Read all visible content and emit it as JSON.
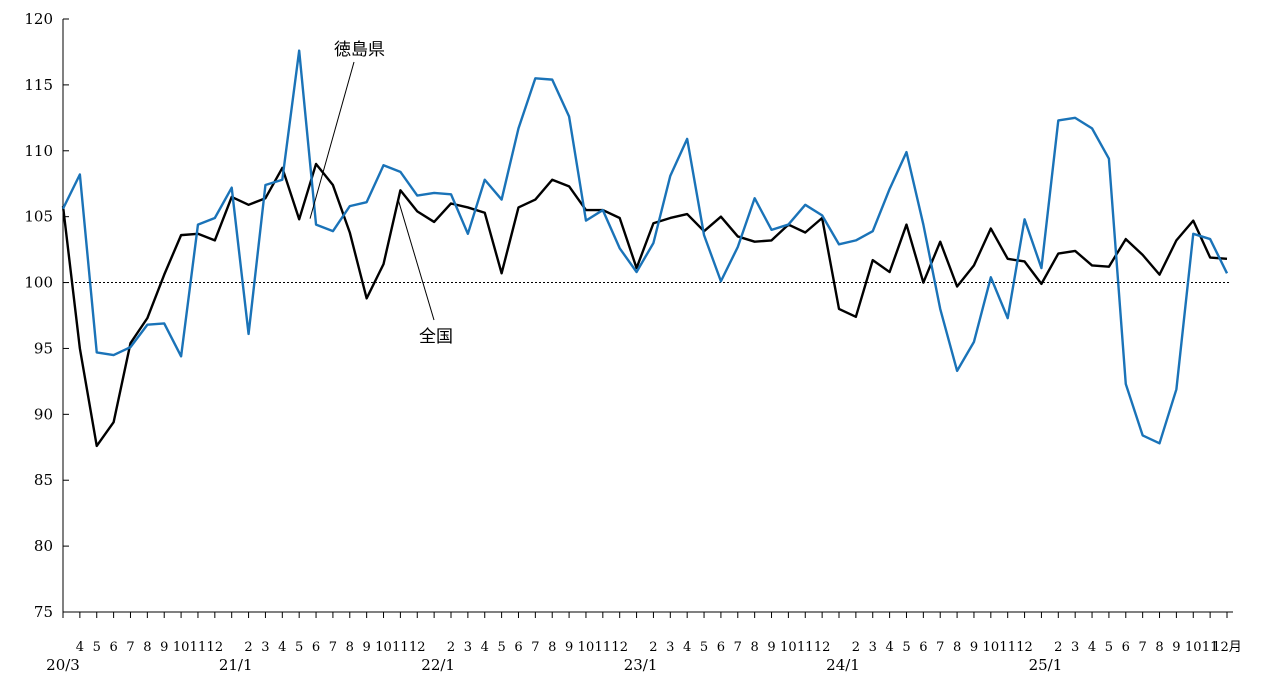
{
  "chart_data": {
    "type": "line",
    "ylim": [
      75,
      120
    ],
    "yticks": [
      75,
      80,
      85,
      90,
      95,
      100,
      105,
      110,
      115,
      120
    ],
    "reference_line": 100,
    "x_month_labels": [
      "",
      "4",
      "5",
      "6",
      "7",
      "8",
      "9",
      "10",
      "11",
      "12",
      "",
      "2",
      "3",
      "4",
      "5",
      "6",
      "7",
      "8",
      "9",
      "10",
      "11",
      "12",
      "",
      "2",
      "3",
      "4",
      "5",
      "6",
      "7",
      "8",
      "9",
      "10",
      "11",
      "12",
      "",
      "2",
      "3",
      "4",
      "5",
      "6",
      "7",
      "8",
      "9",
      "10",
      "11",
      "12",
      "",
      "2",
      "3",
      "4",
      "5",
      "6",
      "7",
      "8",
      "9",
      "10",
      "11",
      "12",
      "",
      "2",
      "3",
      "4",
      "5",
      "6",
      "7",
      "8",
      "9",
      "10",
      "11",
      "12月"
    ],
    "x_year_labels": [
      {
        "index": 0,
        "label": "20/3"
      },
      {
        "index": 10,
        "label": "21/1"
      },
      {
        "index": 22,
        "label": "22/1"
      },
      {
        "index": 34,
        "label": "23/1"
      },
      {
        "index": 46,
        "label": "24/1"
      },
      {
        "index": 58,
        "label": "25/1"
      }
    ],
    "series": [
      {
        "name": "徳島県",
        "color": "#1a73b8",
        "values": [
          105.6,
          108.2,
          94.7,
          94.5,
          95.1,
          96.8,
          96.9,
          94.4,
          104.4,
          104.9,
          107.2,
          96.1,
          107.4,
          107.8,
          117.6,
          104.4,
          103.9,
          105.8,
          106.1,
          108.9,
          108.4,
          106.6,
          106.8,
          106.7,
          103.7,
          107.8,
          106.3,
          111.7,
          115.5,
          115.4,
          112.6,
          104.7,
          105.5,
          102.6,
          100.8,
          103.0,
          108.1,
          110.9,
          103.6,
          100.1,
          102.7,
          106.4,
          104.0,
          104.4,
          105.9,
          105.1,
          102.9,
          103.2,
          103.9,
          107.1,
          109.9,
          104.4,
          98.0,
          93.3,
          95.5,
          100.4,
          97.3,
          104.8,
          101.1,
          112.3,
          112.5,
          111.7,
          109.4,
          92.3,
          88.4,
          87.8,
          91.9,
          103.7,
          103.3,
          100.7
        ]
      },
      {
        "name": "全国",
        "color": "#000000",
        "values": [
          105.8,
          95.0,
          87.6,
          89.4,
          95.4,
          97.3,
          100.6,
          103.6,
          103.7,
          103.2,
          106.5,
          105.9,
          106.4,
          108.7,
          104.8,
          109.0,
          107.4,
          103.8,
          98.8,
          101.4,
          107.0,
          105.4,
          104.6,
          106.0,
          105.7,
          105.3,
          100.7,
          105.7,
          106.3,
          107.8,
          107.3,
          105.5,
          105.5,
          104.9,
          101.1,
          104.5,
          104.9,
          105.2,
          103.9,
          105.0,
          103.5,
          103.1,
          103.2,
          104.4,
          103.8,
          104.9,
          98.0,
          97.4,
          101.7,
          100.8,
          104.4,
          100.0,
          103.1,
          99.7,
          101.3,
          104.1,
          101.8,
          101.6,
          99.9,
          102.2,
          102.4,
          101.3,
          101.2,
          103.3,
          102.1,
          100.6,
          103.2,
          104.7,
          101.9,
          101.8
        ]
      }
    ],
    "annotations": [
      {
        "text": "徳島県",
        "series": "徳島県",
        "point_index": 15
      },
      {
        "text": "全国",
        "series": "全国",
        "point_index": 20
      }
    ]
  }
}
